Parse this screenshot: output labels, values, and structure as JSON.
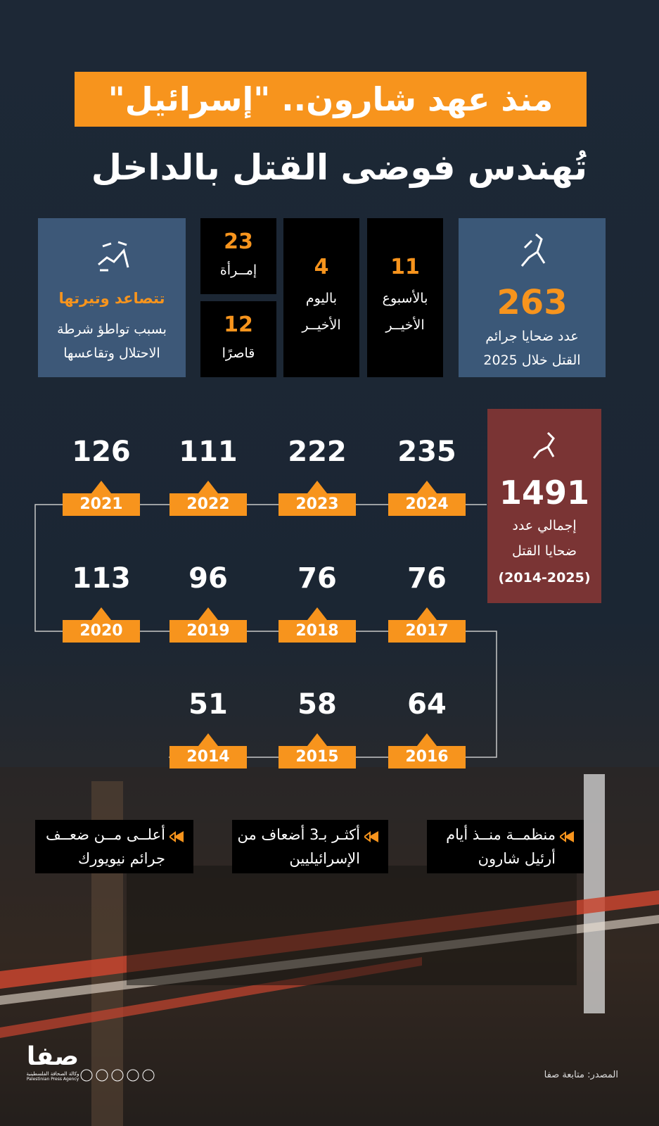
{
  "header": {
    "line1": "منذ عهد شارون.. \"إسرائيل\"",
    "line2": "تُهندس فوضى القتل بالداخل"
  },
  "stats": {
    "year_total": {
      "value": 263,
      "line1": "عدد ضحايا جرائم",
      "line2": "القتل خلال 2025"
    },
    "week": {
      "value": 11,
      "line1": "بالأسبوع",
      "line2": "الأخيــر"
    },
    "day": {
      "value": 4,
      "line1": "باليوم",
      "line2": "الأخيــر"
    },
    "women": {
      "value": 23,
      "label": "إمــرأة"
    },
    "minors": {
      "value": 12,
      "label": "قاصرًا"
    },
    "escalation": {
      "title": "تتصاعد وتيرتها",
      "line1": "بسبب تواطؤ شرطة",
      "line2": "الاحتلال وتقاعسها"
    }
  },
  "total": {
    "value": 1491,
    "line1": "إجمالي عدد",
    "line2": "ضحايا القتل",
    "period": "(2014-2025)"
  },
  "timeline": {
    "rows": [
      [
        {
          "year": 2024,
          "value": 235
        },
        {
          "year": 2023,
          "value": 222
        },
        {
          "year": 2022,
          "value": 111
        },
        {
          "year": 2021,
          "value": 126
        }
      ],
      [
        {
          "year": 2017,
          "value": 76
        },
        {
          "year": 2018,
          "value": 76
        },
        {
          "year": 2019,
          "value": 96
        },
        {
          "year": 2020,
          "value": 113
        }
      ],
      [
        {
          "year": 2016,
          "value": 64
        },
        {
          "year": 2015,
          "value": 58
        },
        {
          "year": 2014,
          "value": 51
        }
      ]
    ]
  },
  "callouts": [
    {
      "line1": "منظمــة منــذ أيام",
      "line2": "أرئيل شارون"
    },
    {
      "line1": "أكثـر بـ3 أضعاف من",
      "line2": "الإسرائيليين"
    },
    {
      "line1": "أعلــى مــن ضعــف",
      "line2": "جرائم نيويورك"
    }
  ],
  "footer": {
    "logo": "صفا",
    "agency_ar": "وكالة الصحافة الفلسطينية",
    "agency_en": "Palestinian Press Agency",
    "source": "المصدر: متابعة صفا"
  }
}
